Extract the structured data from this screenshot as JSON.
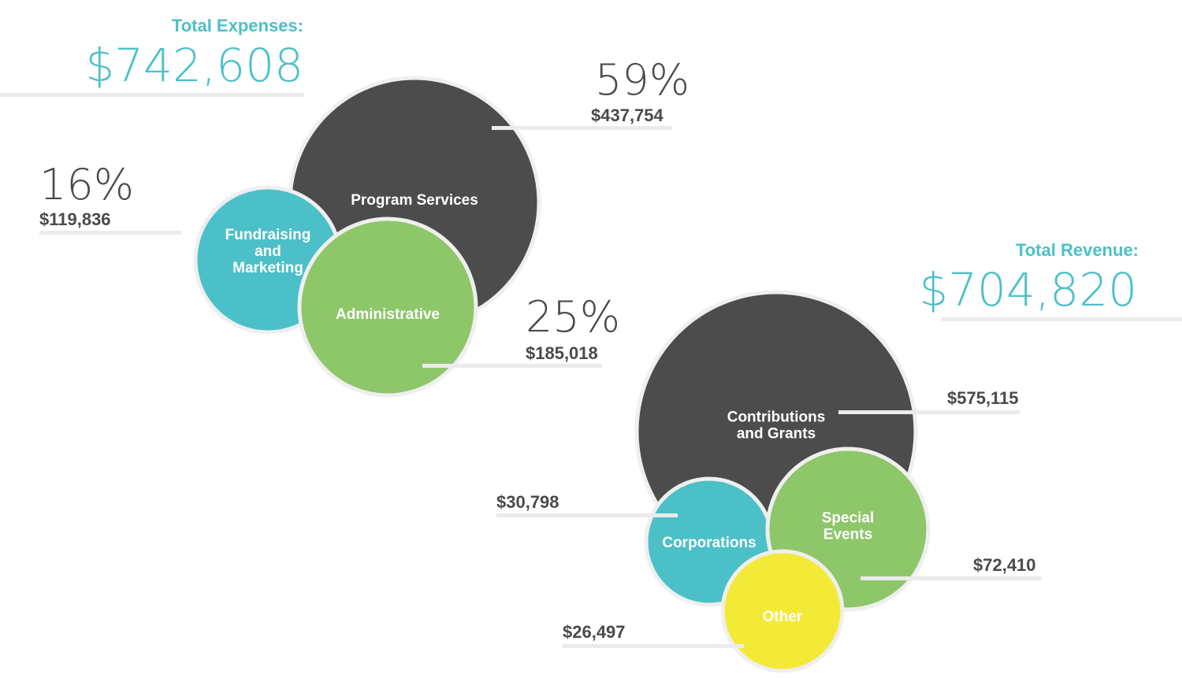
{
  "colors": {
    "dark": "#4d4c4c",
    "teal": "#4bc0c8",
    "green": "#8ec66a",
    "yellow": "#f3ea38",
    "accent": "#4bc0c8",
    "leader": "#ebebeb",
    "ring": "#efefef"
  },
  "chart_data": [
    {
      "type": "bubble",
      "title": "Total Expenses:",
      "total": "$742,608",
      "categories": [
        "Program Services",
        "Fundraising and Marketing",
        "Administrative"
      ],
      "values": [
        437754,
        119836,
        185018
      ],
      "value_labels": [
        "$437,754",
        "$119,836",
        "$185,018"
      ],
      "percent_labels": [
        "59%",
        "16%",
        "25%"
      ],
      "colors": [
        "dark",
        "teal",
        "green"
      ]
    },
    {
      "type": "bubble",
      "title": "Total Revenue:",
      "total": "$704,820",
      "categories": [
        "Contributions and Grants",
        "Corporations",
        "Special Events",
        "Other"
      ],
      "values": [
        575115,
        30798,
        72410,
        26497
      ],
      "value_labels": [
        "$575,115",
        "$30,798",
        "$72,410",
        "$26,497"
      ],
      "colors": [
        "dark",
        "teal",
        "green",
        "yellow"
      ]
    }
  ]
}
